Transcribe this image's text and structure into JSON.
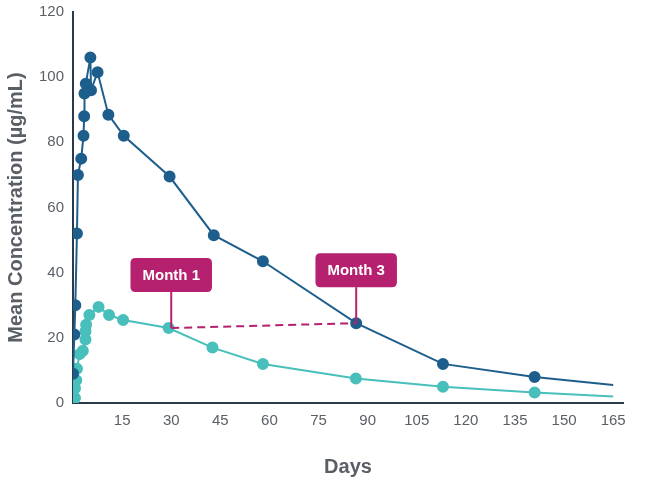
{
  "chart_data": {
    "type": "line",
    "x_label": "Days",
    "y_label": "Mean Concentration (µg/mL)",
    "series": [
      {
        "color": "#1d5e8c",
        "marker": "circle",
        "x": [
          0,
          0.4,
          0.7,
          1.2,
          1.5,
          2.5,
          3.2,
          3.4,
          3.5,
          3.9,
          5.3,
          5.5,
          7.5,
          10.8,
          15.5,
          29.5,
          43,
          58,
          86.5,
          113,
          141,
          165
        ],
        "values": [
          9,
          21,
          30,
          52,
          70,
          75,
          82,
          88,
          95,
          98,
          106,
          96,
          101.5,
          88.5,
          82,
          69.5,
          51.5,
          43.5,
          24.5,
          12,
          8,
          5.5
        ]
      },
      {
        "color": "#48bfbb",
        "marker": "circle",
        "x": [
          0.6,
          0.6,
          1,
          1.2,
          2,
          3,
          3.8,
          3.8,
          4,
          5,
          7.8,
          11,
          15.3,
          29.2,
          42.6,
          58,
          86.4,
          113,
          141,
          165
        ],
        "values": [
          1.5,
          4.5,
          7,
          10.5,
          15,
          16,
          19.5,
          22,
          24,
          27,
          29.5,
          27,
          25.5,
          23,
          17,
          12,
          7.5,
          5,
          3.2,
          2
        ]
      }
    ],
    "annotations": [
      {
        "text": "Month 1",
        "x": 30,
        "y": 23,
        "color": "#b5206f"
      },
      {
        "text": "Month 3",
        "x": 86.5,
        "y": 24.5,
        "color": "#b5206f"
      }
    ],
    "annotation_line_style": "dashed",
    "xlim": [
      0,
      168
    ],
    "xticks": [
      15,
      30,
      45,
      60,
      75,
      90,
      105,
      120,
      135,
      150,
      165
    ],
    "ylim": [
      0,
      120
    ],
    "yticks": [
      0,
      20,
      40,
      60,
      80,
      100,
      120
    ],
    "grid": false,
    "legend": null
  }
}
